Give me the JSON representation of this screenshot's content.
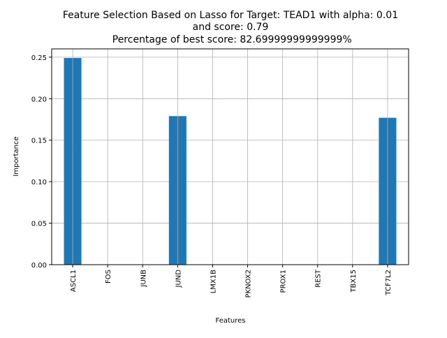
{
  "chart_data": {
    "type": "bar",
    "title_lines": [
      "Feature Selection Based on Lasso for Target: TEAD1 with alpha: 0.01",
      "and score: 0.79",
      " Percentage of best score: 82.69999999999999%"
    ],
    "xlabel": "Features",
    "ylabel": "Importance",
    "categories": [
      "ASCL1",
      "FOS",
      "JUNB",
      "JUND",
      "LMX1B",
      "PKNOX2",
      "PROX1",
      "REST",
      "TBX15",
      "TCF7L2"
    ],
    "values": [
      0.249,
      0.0,
      0.0,
      0.179,
      0.0,
      0.0,
      0.0,
      0.0,
      0.0,
      0.177
    ],
    "ylim": [
      0,
      0.26
    ],
    "yticks": [
      0.0,
      0.05,
      0.1,
      0.15,
      0.2,
      0.25
    ],
    "ytick_labels": [
      "0.00",
      "0.05",
      "0.10",
      "0.15",
      "0.20",
      "0.25"
    ],
    "grid": true,
    "bar_color": "#1f77b4",
    "grid_color": "#b0b0b0"
  }
}
